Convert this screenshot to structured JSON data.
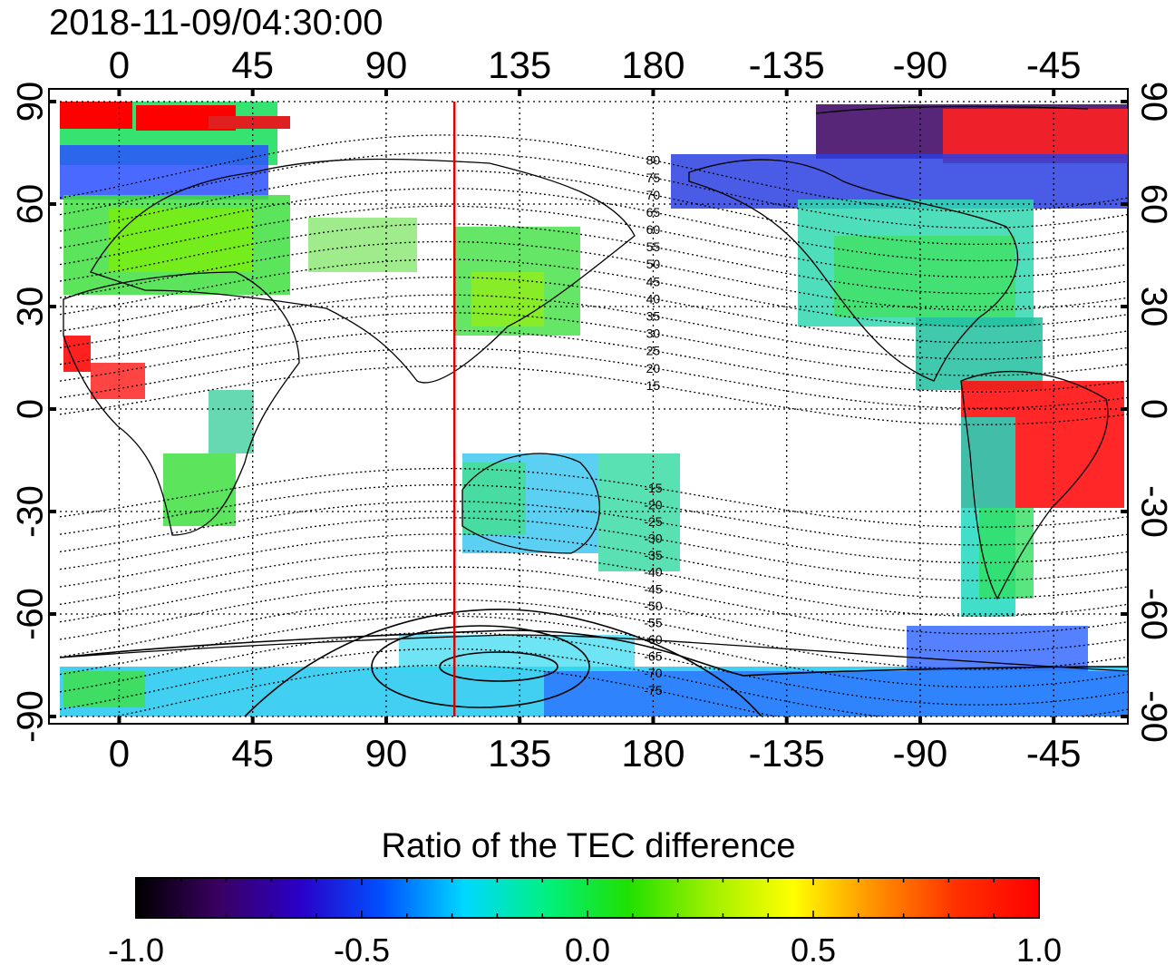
{
  "header": {
    "timestamp": "2018-11-09/04:30:00"
  },
  "map": {
    "projection": "equirectangular",
    "x_tick_labels": [
      "0",
      "45",
      "90",
      "135",
      "180",
      "-135",
      "-90",
      "-45"
    ],
    "y_tick_labels": [
      "90",
      "60",
      "30",
      "0",
      "-30",
      "-60",
      "-90"
    ],
    "meridian_marker": {
      "longitude": 113,
      "color": "#e00000"
    },
    "magnetic_contour_labels": [
      "80",
      "75",
      "70",
      "65",
      "60",
      "55",
      "50",
      "45",
      "40",
      "35",
      "30",
      "25",
      "20",
      "15",
      "-15",
      "-20",
      "-25",
      "-30",
      "-35",
      "-40",
      "-45",
      "-50",
      "-55",
      "-60",
      "-65",
      "-70",
      "-75"
    ]
  },
  "colorbar": {
    "title": "Ratio of the TEC difference",
    "min": -1.0,
    "max": 1.0,
    "tick_labels": [
      "-1.0",
      "-0.5",
      "0.0",
      "0.5",
      "1.0"
    ],
    "colors": [
      "#000000",
      "#3a0060",
      "#2a00c8",
      "#0050ff",
      "#00d8ff",
      "#00f080",
      "#20e000",
      "#a0f000",
      "#ffff00",
      "#ff9000",
      "#ff3000",
      "#ff0000"
    ]
  }
}
